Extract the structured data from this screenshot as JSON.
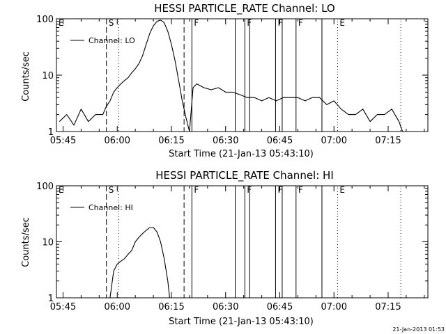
{
  "footer": {
    "timestamp": "21-Jan-2013 01:53"
  },
  "chart_data": [
    {
      "type": "line",
      "title": "HESSI PARTICLE_RATE Channel: LO",
      "xlabel": "Start Time (21-Jan-13 05:43:10)",
      "ylabel": "Counts/sec",
      "y_scale": "log",
      "ylim": [
        1,
        100
      ],
      "xlim": [
        "05:43:10",
        "07:26:00"
      ],
      "x_ticks": [
        "05:45",
        "06:00",
        "06:15",
        "06:30",
        "06:45",
        "07:00",
        "07:15"
      ],
      "y_ticks": [
        "1",
        "10",
        "100"
      ],
      "legend": {
        "position": "top-left",
        "entries": [
          "Channel: LO"
        ]
      },
      "event_lines": [
        {
          "label": "E",
          "x": "05:43:10",
          "style": "solid"
        },
        {
          "label": "S",
          "x": "05:57:00",
          "style": "dashed"
        },
        {
          "x": "06:00:20",
          "style": "dotted"
        },
        {
          "x": "06:18:30",
          "style": "dashed"
        },
        {
          "label": "F",
          "x": "06:20:40",
          "style": "solid"
        },
        {
          "x": "06:32:40",
          "style": "solid"
        },
        {
          "label": "F",
          "x": "06:35:20",
          "style": "solid"
        },
        {
          "x": "06:36:40",
          "style": "solid"
        },
        {
          "label": "F",
          "x": "06:43:50",
          "style": "solid"
        },
        {
          "x": "06:45:40",
          "style": "solid"
        },
        {
          "label": "F",
          "x": "06:49:30",
          "style": "solid"
        },
        {
          "x": "06:56:40",
          "style": "solid"
        },
        {
          "label": "E",
          "x": "07:01:00",
          "style": "dotted"
        },
        {
          "x": "07:18:30",
          "style": "dotted"
        }
      ],
      "series": [
        {
          "name": "Channel: LO",
          "x": [
            "05:44:00",
            "05:46:00",
            "05:48:00",
            "05:50:00",
            "05:52:00",
            "05:54:00",
            "05:56:00",
            "05:57:00",
            "05:58:00",
            "05:59:00",
            "06:00:00",
            "06:01:00",
            "06:02:00",
            "06:03:00",
            "06:04:00",
            "06:05:00",
            "06:06:00",
            "06:07:00",
            "06:08:00",
            "06:09:00",
            "06:10:00",
            "06:11:00",
            "06:12:00",
            "06:13:00",
            "06:14:00",
            "06:15:00",
            "06:16:00",
            "06:17:00",
            "06:18:00",
            "06:19:00",
            "06:20:00",
            "06:21:00",
            "06:22:00",
            "06:24:00",
            "06:26:00",
            "06:28:00",
            "06:30:00",
            "06:32:00",
            "06:34:00",
            "06:36:00",
            "06:38:00",
            "06:40:00",
            "06:42:00",
            "06:44:00",
            "06:46:00",
            "06:48:00",
            "06:50:00",
            "06:52:00",
            "06:54:00",
            "06:56:00",
            "06:58:00",
            "07:00:00",
            "07:02:00",
            "07:04:00",
            "07:06:00",
            "07:08:00",
            "07:10:00",
            "07:12:00",
            "07:14:00",
            "07:16:00",
            "07:18:00",
            "07:19:00",
            "07:20:00",
            "07:22:00",
            "07:24:00"
          ],
          "y": [
            1.5,
            2,
            1.3,
            2.5,
            1.5,
            2,
            2,
            2.8,
            3.5,
            5,
            6,
            7,
            8,
            9,
            11,
            13,
            16,
            22,
            35,
            55,
            75,
            90,
            95,
            85,
            60,
            35,
            18,
            8,
            3.5,
            1.8,
            1,
            6,
            7,
            6,
            5.5,
            6,
            5,
            5,
            4.5,
            4,
            4,
            3.5,
            4,
            3.5,
            4,
            4,
            4,
            3.5,
            4,
            4,
            3,
            3.5,
            2.5,
            2,
            2,
            2.5,
            1.5,
            2,
            2,
            2.5,
            1.5,
            1,
            1,
            1,
            1
          ]
        }
      ]
    },
    {
      "type": "line",
      "title": "HESSI PARTICLE_RATE Channel: HI",
      "xlabel": "Start Time (21-Jan-13 05:43:10)",
      "ylabel": "Counts/sec",
      "y_scale": "log",
      "ylim": [
        1,
        100
      ],
      "xlim": [
        "05:43:10",
        "07:26:00"
      ],
      "x_ticks": [
        "05:45",
        "06:00",
        "06:15",
        "06:30",
        "06:45",
        "07:00",
        "07:15"
      ],
      "y_ticks": [
        "1",
        "10",
        "100"
      ],
      "legend": {
        "position": "top-left",
        "entries": [
          "Channel: HI"
        ]
      },
      "event_lines": [
        {
          "label": "E",
          "x": "05:43:10",
          "style": "solid"
        },
        {
          "label": "S",
          "x": "05:57:00",
          "style": "dashed"
        },
        {
          "x": "06:00:20",
          "style": "dotted"
        },
        {
          "x": "06:18:30",
          "style": "dashed"
        },
        {
          "label": "F",
          "x": "06:20:40",
          "style": "solid"
        },
        {
          "x": "06:32:40",
          "style": "solid"
        },
        {
          "label": "F",
          "x": "06:35:20",
          "style": "solid"
        },
        {
          "x": "06:36:40",
          "style": "solid"
        },
        {
          "label": "F",
          "x": "06:43:50",
          "style": "solid"
        },
        {
          "x": "06:45:40",
          "style": "solid"
        },
        {
          "label": "F",
          "x": "06:49:30",
          "style": "solid"
        },
        {
          "x": "06:56:40",
          "style": "solid"
        },
        {
          "label": "E",
          "x": "07:01:00",
          "style": "dotted"
        },
        {
          "x": "07:18:30",
          "style": "dotted"
        }
      ],
      "series": [
        {
          "name": "Channel: HI",
          "x": [
            "05:58:00",
            "05:59:00",
            "06:00:00",
            "06:01:00",
            "06:02:00",
            "06:03:00",
            "06:04:00",
            "06:05:00",
            "06:06:00",
            "06:07:00",
            "06:08:00",
            "06:09:00",
            "06:10:00",
            "06:11:00",
            "06:12:00",
            "06:13:00",
            "06:14:00",
            "06:14:30"
          ],
          "y": [
            1,
            3,
            4,
            4.5,
            5,
            6,
            7,
            10,
            12,
            14,
            16,
            18,
            18,
            15,
            10,
            5,
            2,
            1
          ]
        }
      ]
    }
  ]
}
